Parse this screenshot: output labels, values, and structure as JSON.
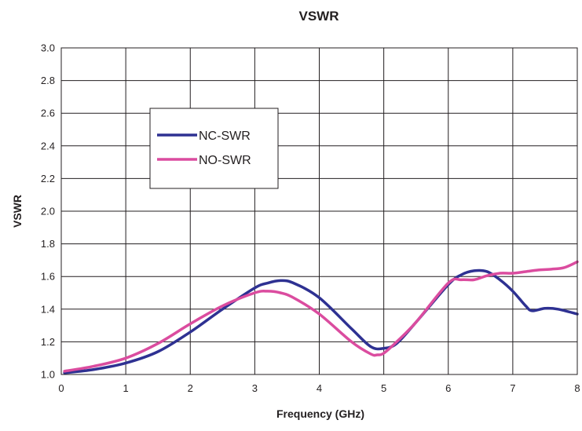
{
  "chart_data": {
    "type": "line",
    "title": "VSWR",
    "xlabel": "Frequency (GHz)",
    "ylabel": "VSWR",
    "xlim": [
      0,
      8
    ],
    "ylim": [
      1.0,
      3.0
    ],
    "x_ticks": [
      "0",
      "1",
      "2",
      "3",
      "4",
      "5",
      "6",
      "7",
      "8"
    ],
    "y_ticks": [
      "1.0",
      "1.2",
      "1.4",
      "1.6",
      "1.8",
      "2.0",
      "2.2",
      "2.4",
      "2.6",
      "2.8",
      "3.0"
    ],
    "grid": true,
    "legend_position": "upper-left",
    "series": [
      {
        "name": "NC-SWR",
        "color": "#2e3192",
        "x": [
          0.05,
          0.5,
          1.0,
          1.5,
          2.0,
          2.5,
          3.0,
          3.2,
          3.4,
          3.6,
          4.0,
          4.5,
          4.8,
          5.0,
          5.2,
          5.5,
          6.0,
          6.2,
          6.4,
          6.6,
          6.8,
          7.0,
          7.2,
          7.3,
          7.5,
          7.7,
          8.0
        ],
        "y": [
          1.01,
          1.03,
          1.07,
          1.14,
          1.26,
          1.4,
          1.53,
          1.56,
          1.575,
          1.56,
          1.47,
          1.28,
          1.17,
          1.16,
          1.19,
          1.32,
          1.55,
          1.61,
          1.635,
          1.63,
          1.58,
          1.51,
          1.42,
          1.39,
          1.405,
          1.4,
          1.37
        ]
      },
      {
        "name": "NO-SWR",
        "color": "#db4c9f",
        "x": [
          0.05,
          0.5,
          1.0,
          1.5,
          2.0,
          2.5,
          3.0,
          3.2,
          3.4,
          3.6,
          4.0,
          4.5,
          4.8,
          4.9,
          5.0,
          5.2,
          5.5,
          6.0,
          6.2,
          6.4,
          6.6,
          6.8,
          7.0,
          7.2,
          7.4,
          7.6,
          7.8,
          8.0
        ],
        "y": [
          1.02,
          1.05,
          1.1,
          1.19,
          1.31,
          1.42,
          1.5,
          1.51,
          1.5,
          1.47,
          1.37,
          1.2,
          1.125,
          1.12,
          1.13,
          1.2,
          1.32,
          1.56,
          1.58,
          1.58,
          1.605,
          1.62,
          1.62,
          1.63,
          1.64,
          1.645,
          1.655,
          1.69
        ]
      }
    ]
  }
}
